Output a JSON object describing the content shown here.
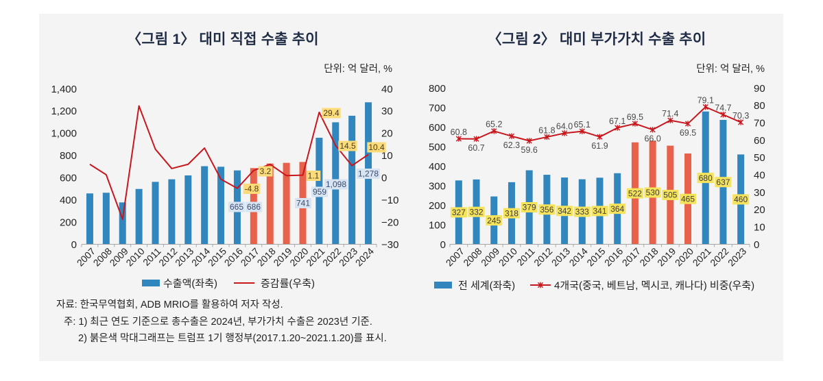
{
  "chart_data": [
    {
      "type": "bar",
      "title": "〈그림 1〉 대미 직접 수출 추이",
      "unit_label": "단위: 억 달러, %",
      "categories": [
        "2007",
        "2008",
        "2009",
        "2010",
        "2011",
        "2012",
        "2013",
        "2014",
        "2015",
        "2016",
        "2017",
        "2018",
        "2019",
        "2020",
        "2021",
        "2022",
        "2023",
        "2024"
      ],
      "highlight": {
        "categories": [
          "2017",
          "2018",
          "2019",
          "2020"
        ],
        "meaning": "트럼프 1기 행정부"
      },
      "colors": {
        "bar": "#3286be",
        "bar_highlight": "#e8614b",
        "line": "#c8161d",
        "bar_label_bg": "#d8e4f2",
        "bar_label_text": "#3a4b6e",
        "line_label_bg": "#fbdb7a",
        "line_label_text": "#4a3c1c"
      },
      "y_left": {
        "range": [
          0,
          1400
        ],
        "ticks": [
          0,
          200,
          400,
          600,
          800,
          1000,
          1200,
          1400
        ],
        "tick_labels": [
          "0",
          "200",
          "400",
          "600",
          "800",
          "1,000",
          "1,200",
          "1,400"
        ]
      },
      "y_right": {
        "range": [
          -30,
          40
        ],
        "ticks": [
          -30,
          -20,
          -10,
          0,
          10,
          20,
          30,
          40
        ],
        "tick_labels": [
          "−30",
          "−20",
          "−10",
          "0",
          "10",
          "20",
          "30",
          "40"
        ]
      },
      "series": [
        {
          "name": "수출액(좌축)",
          "type": "bar",
          "axis": "left",
          "values": [
            458,
            464,
            377,
            498,
            562,
            585,
            620,
            703,
            698,
            665,
            686,
            727,
            733,
            741,
            959,
            1098,
            1157,
            1278
          ]
        },
        {
          "name": "증감률(우축)",
          "type": "line",
          "axis": "right",
          "values": [
            6.0,
            1.3,
            -18.8,
            32.3,
            12.8,
            4.1,
            6.0,
            13.3,
            -0.7,
            -4.8,
            3.2,
            6.0,
            0.9,
            1.1,
            29.4,
            14.5,
            5.4,
            10.4
          ]
        }
      ],
      "data_labels": {
        "bar": {
          "2016": "665",
          "2017": "686",
          "2020": "741",
          "2021": "959",
          "2022": "1,098",
          "2024": "1,278"
        },
        "line": {
          "2016": "-4.8",
          "2017": "3.2",
          "2020": "1.1",
          "2021": "29.4",
          "2022": "14.5",
          "2024": "10.4"
        }
      },
      "legend": [
        {
          "label": "수출액(좌축)",
          "symbol": "bar"
        },
        {
          "label": "증감률(우축)",
          "symbol": "line"
        }
      ],
      "legend_position": "bottom",
      "xlabel": "",
      "ylabel": "",
      "grid": false
    },
    {
      "type": "bar",
      "title": "〈그림 2〉 대미 부가가치 수출 추이",
      "unit_label": "단위: 억 달러, %",
      "categories": [
        "2007",
        "2008",
        "2009",
        "2010",
        "2011",
        "2012",
        "2013",
        "2014",
        "2015",
        "2016",
        "2017",
        "2018",
        "2019",
        "2020",
        "2021",
        "2022",
        "2023"
      ],
      "highlight": {
        "categories": [
          "2017",
          "2018",
          "2019",
          "2020"
        ],
        "meaning": "트럼프 1기 행정부"
      },
      "colors": {
        "bar": "#3286be",
        "bar_highlight": "#e8614b",
        "line": "#c8161d",
        "bar_label_bg": "#f6e35c",
        "bar_label_text": "#3b3b3b",
        "line_label_text": "#4a4a4a"
      },
      "y_left": {
        "range": [
          0,
          800
        ],
        "ticks": [
          0,
          100,
          200,
          300,
          400,
          500,
          600,
          700,
          800
        ],
        "tick_labels": [
          "0",
          "100",
          "200",
          "300",
          "400",
          "500",
          "600",
          "700",
          "800"
        ]
      },
      "y_right": {
        "range": [
          0,
          90
        ],
        "ticks": [
          0,
          10,
          20,
          30,
          40,
          50,
          60,
          70,
          80,
          90
        ],
        "tick_labels": [
          "0",
          "10",
          "20",
          "30",
          "40",
          "50",
          "60",
          "70",
          "80",
          "90"
        ]
      },
      "series": [
        {
          "name": "전 세계(좌축)",
          "type": "bar",
          "axis": "left",
          "values": [
            327,
            332,
            245,
            318,
            379,
            356,
            342,
            333,
            341,
            364,
            522,
            530,
            505,
            465,
            680,
            637,
            460
          ]
        },
        {
          "name": "4개국(중국, 베트남, 멕시코, 캐나다) 비중(우축)",
          "type": "line",
          "axis": "right",
          "marker": "asterisk",
          "values": [
            60.8,
            60.7,
            65.2,
            62.3,
            59.6,
            61.8,
            64.0,
            65.1,
            61.9,
            67.1,
            69.5,
            66.0,
            71.4,
            69.5,
            79.1,
            74.7,
            70.3
          ]
        }
      ],
      "data_labels": {
        "bar": [
          "327",
          "332",
          "245",
          "318",
          "379",
          "356",
          "342",
          "333",
          "341",
          "364",
          "522",
          "530",
          "505",
          "465",
          "680",
          "637",
          "460"
        ],
        "line": [
          "60.8",
          "60.7",
          "65.2",
          "62.3",
          "59.6",
          "61.8",
          "64.0",
          "65.1",
          "61.9",
          "67.1",
          "69.5",
          "66.0",
          "71.4",
          "69.5",
          "79.1",
          "74.7",
          "70.3"
        ]
      },
      "legend": [
        {
          "label": "전 세계(좌축)",
          "symbol": "bar"
        },
        {
          "label": "4개국(중국, 베트남, 멕시코, 캐나다) 비중(우축)",
          "symbol": "line-asterisk"
        }
      ],
      "legend_position": "bottom",
      "xlabel": "",
      "ylabel": "",
      "grid": false
    }
  ],
  "notes": {
    "source_label": "자료:",
    "source_text": "한국무역협회, ADB MRIO를 활용하여 저자 작성.",
    "note_label": "주:",
    "items": [
      "1) 최근 연도 기준으로 총수출은 2024년, 부가가치 수출은 2023년 기준.",
      "2) 붉은색 막대그래프는 트럼프 1기 행정부(2017.1.20~2021.1.20)를 표시."
    ]
  }
}
